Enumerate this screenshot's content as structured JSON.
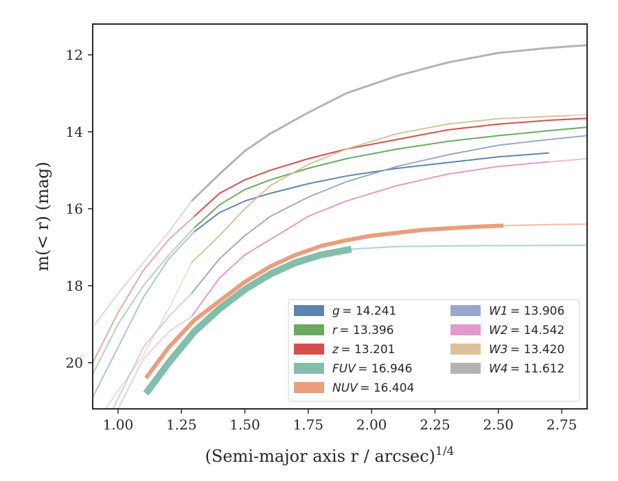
{
  "chart_data": {
    "type": "line",
    "xlabel": "(Semi-major axis r / arcsec)",
    "xlabel_sup": "1/4",
    "ylabel": "m(< r) (mag)",
    "xlim": [
      0.9,
      2.85
    ],
    "ylim": [
      21.2,
      11.2
    ],
    "y_inverted": true,
    "xticks": [
      "1.00",
      "1.25",
      "1.50",
      "1.75",
      "2.00",
      "2.25",
      "2.50",
      "2.75"
    ],
    "yticks": [
      "12",
      "14",
      "16",
      "18",
      "20"
    ],
    "grid": false,
    "legend": {
      "placement": "lower-right",
      "columns": 2
    },
    "series": [
      {
        "name": "g = 14.241",
        "label_var": "g",
        "label_val": "= 14.241",
        "color": "#4C78A8",
        "width": 2,
        "faint": [
          [
            0.9,
            20.9
          ],
          [
            1.0,
            19.6
          ],
          [
            1.1,
            18.3
          ],
          [
            1.2,
            17.3
          ],
          [
            1.3,
            16.6
          ]
        ],
        "main": [
          [
            1.3,
            16.6
          ],
          [
            1.4,
            16.1
          ],
          [
            1.5,
            15.8
          ],
          [
            1.6,
            15.6
          ],
          [
            1.75,
            15.35
          ],
          [
            1.9,
            15.15
          ],
          [
            2.1,
            14.95
          ],
          [
            2.3,
            14.8
          ],
          [
            2.5,
            14.65
          ],
          [
            2.7,
            14.55
          ]
        ],
        "tail": []
      },
      {
        "name": "r = 13.396",
        "label_var": "r",
        "label_val": "= 13.396",
        "color": "#59A14F",
        "width": 2,
        "faint": [
          [
            0.9,
            20.3
          ],
          [
            1.0,
            19.0
          ],
          [
            1.1,
            18.0
          ],
          [
            1.2,
            17.2
          ],
          [
            1.3,
            16.5
          ]
        ],
        "main": [
          [
            1.3,
            16.5
          ],
          [
            1.4,
            15.9
          ],
          [
            1.5,
            15.5
          ],
          [
            1.6,
            15.25
          ],
          [
            1.75,
            14.95
          ],
          [
            1.9,
            14.7
          ],
          [
            2.1,
            14.45
          ],
          [
            2.3,
            14.25
          ],
          [
            2.5,
            14.1
          ],
          [
            2.7,
            13.97
          ],
          [
            2.85,
            13.88
          ]
        ],
        "tail": []
      },
      {
        "name": "z = 13.201",
        "label_var": "z",
        "label_val": "= 13.201",
        "color": "#D13B3B",
        "width": 2,
        "faint": [
          [
            0.9,
            20.0
          ],
          [
            1.0,
            18.7
          ],
          [
            1.1,
            17.6
          ],
          [
            1.2,
            16.8
          ],
          [
            1.3,
            16.2
          ]
        ],
        "main": [
          [
            1.3,
            16.2
          ],
          [
            1.4,
            15.6
          ],
          [
            1.5,
            15.25
          ],
          [
            1.6,
            15.0
          ],
          [
            1.75,
            14.7
          ],
          [
            1.9,
            14.45
          ],
          [
            2.1,
            14.2
          ],
          [
            2.3,
            13.95
          ],
          [
            2.5,
            13.8
          ],
          [
            2.7,
            13.7
          ],
          [
            2.85,
            13.65
          ]
        ],
        "tail": []
      },
      {
        "name": "FUV = 16.946",
        "label_var": "FUV",
        "label_val": "= 16.946",
        "color": "#76B7A3",
        "width": 10,
        "faint": [],
        "main": [
          [
            1.11,
            20.8
          ],
          [
            1.2,
            20.0
          ],
          [
            1.3,
            19.2
          ],
          [
            1.4,
            18.6
          ],
          [
            1.5,
            18.1
          ],
          [
            1.6,
            17.7
          ],
          [
            1.7,
            17.4
          ],
          [
            1.8,
            17.2
          ],
          [
            1.92,
            17.05
          ]
        ],
        "tail": [
          [
            1.92,
            17.05
          ],
          [
            2.1,
            16.98
          ],
          [
            2.4,
            16.96
          ],
          [
            2.85,
            16.95
          ]
        ]
      },
      {
        "name": "NUV = 16.404",
        "label_var": "NUV",
        "label_val": "= 16.404",
        "color": "#E8936E",
        "width": 6,
        "faint": [],
        "main": [
          [
            1.11,
            20.4
          ],
          [
            1.2,
            19.6
          ],
          [
            1.3,
            18.9
          ],
          [
            1.4,
            18.4
          ],
          [
            1.5,
            17.9
          ],
          [
            1.6,
            17.5
          ],
          [
            1.7,
            17.2
          ],
          [
            1.8,
            16.97
          ],
          [
            1.9,
            16.82
          ],
          [
            2.0,
            16.7
          ],
          [
            2.2,
            16.55
          ],
          [
            2.4,
            16.47
          ],
          [
            2.52,
            16.44
          ]
        ],
        "tail": [
          [
            2.52,
            16.44
          ],
          [
            2.7,
            16.41
          ],
          [
            2.85,
            16.4
          ]
        ]
      },
      {
        "name": "W1 = 13.906",
        "label_var": "W1",
        "label_val": "= 13.906",
        "color": "#8E9EC4",
        "width": 2,
        "faint": [
          [
            0.98,
            21.2
          ],
          [
            1.1,
            19.6
          ],
          [
            1.2,
            18.8
          ],
          [
            1.29,
            18.2
          ]
        ],
        "main": [
          [
            1.29,
            18.2
          ],
          [
            1.4,
            17.3
          ],
          [
            1.5,
            16.7
          ],
          [
            1.6,
            16.2
          ],
          [
            1.75,
            15.7
          ],
          [
            1.9,
            15.3
          ],
          [
            2.1,
            14.9
          ],
          [
            2.3,
            14.6
          ],
          [
            2.5,
            14.35
          ],
          [
            2.7,
            14.2
          ],
          [
            2.85,
            14.1
          ]
        ],
        "tail": []
      },
      {
        "name": "W2 = 14.542",
        "label_var": "W2",
        "label_val": "= 14.542",
        "color": "#DE8FC4",
        "width": 2,
        "faint": [
          [
            1.0,
            21.2
          ],
          [
            1.1,
            19.9
          ],
          [
            1.2,
            19.2
          ],
          [
            1.29,
            18.8
          ]
        ],
        "main": [
          [
            1.29,
            18.8
          ],
          [
            1.4,
            17.8
          ],
          [
            1.5,
            17.2
          ],
          [
            1.6,
            16.8
          ],
          [
            1.75,
            16.2
          ],
          [
            1.9,
            15.8
          ],
          [
            2.1,
            15.4
          ],
          [
            2.3,
            15.1
          ],
          [
            2.5,
            14.9
          ],
          [
            2.7,
            14.78
          ]
        ],
        "tail": [
          [
            2.7,
            14.78
          ],
          [
            2.85,
            14.7
          ]
        ]
      },
      {
        "name": "W3 = 13.420",
        "label_var": "W3",
        "label_val": "= 13.420",
        "color": "#D9B98F",
        "width": 2,
        "faint": [
          [
            0.95,
            21.2
          ],
          [
            1.1,
            19.8
          ],
          [
            1.2,
            18.6
          ],
          [
            1.29,
            17.4
          ]
        ],
        "main": [
          [
            1.29,
            17.4
          ],
          [
            1.4,
            16.7
          ],
          [
            1.5,
            16.0
          ],
          [
            1.6,
            15.4
          ],
          [
            1.75,
            14.85
          ],
          [
            1.9,
            14.45
          ],
          [
            2.1,
            14.05
          ],
          [
            2.3,
            13.8
          ],
          [
            2.5,
            13.66
          ],
          [
            2.7,
            13.6
          ],
          [
            2.78,
            13.58
          ]
        ],
        "tail": [
          [
            2.78,
            13.58
          ],
          [
            2.85,
            13.55
          ]
        ]
      },
      {
        "name": "W4 = 11.612",
        "label_var": "W4",
        "label_val": "= 11.612",
        "color": "#ABABAB",
        "width": 3,
        "faint": [
          [
            0.91,
            19.0
          ],
          [
            1.0,
            18.2
          ],
          [
            1.1,
            17.4
          ],
          [
            1.2,
            16.6
          ],
          [
            1.29,
            15.8
          ]
        ],
        "main": [
          [
            1.29,
            15.8
          ],
          [
            1.4,
            15.1
          ],
          [
            1.5,
            14.5
          ],
          [
            1.6,
            14.05
          ],
          [
            1.75,
            13.5
          ],
          [
            1.9,
            13.0
          ],
          [
            2.1,
            12.55
          ],
          [
            2.3,
            12.2
          ],
          [
            2.5,
            11.95
          ],
          [
            2.7,
            11.82
          ],
          [
            2.85,
            11.75
          ]
        ],
        "tail": []
      }
    ]
  }
}
